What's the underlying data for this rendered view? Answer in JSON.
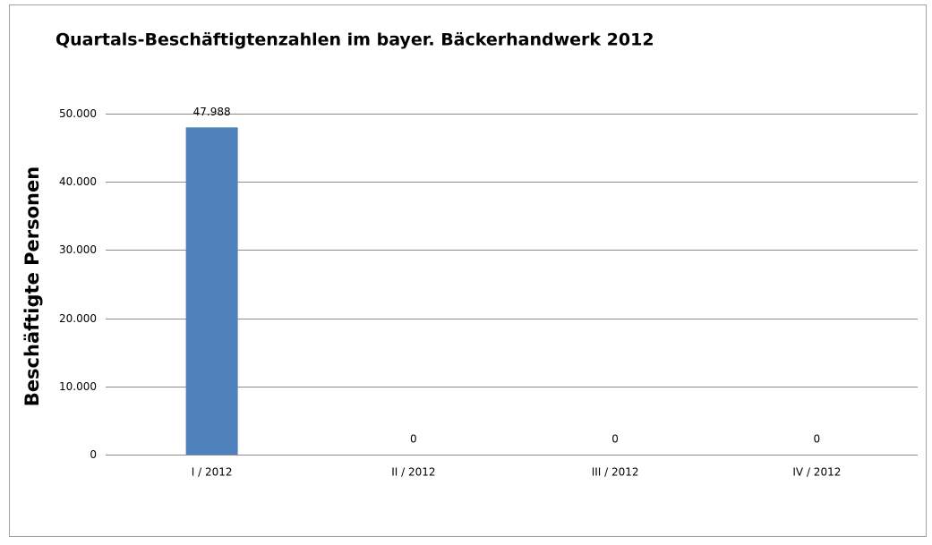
{
  "chart_data": {
    "type": "bar",
    "title": "Quartals-Beschäftigtenzahlen im bayer. Bäckerhandwerk 2012",
    "y_label": "Beschäftigte Personen",
    "categories": [
      "I / 2012",
      "II / 2012",
      "III / 2012",
      "IV / 2012"
    ],
    "values": [
      47988,
      0,
      0,
      0
    ],
    "value_labels": [
      "47.988",
      "0",
      "0",
      "0"
    ],
    "color": "#4f81bd",
    "ylim": [
      0,
      50000
    ],
    "yticks": [
      0,
      {
        "value": 10000,
        "label": "10.000"
      },
      {
        "value": 20000,
        "label": "20.000"
      },
      {
        "value": 30000,
        "label": "30.000"
      },
      {
        "value": 40000,
        "label": "40.000"
      },
      {
        "value": 50000,
        "label": "50.000"
      }
    ],
    "grid": true
  }
}
